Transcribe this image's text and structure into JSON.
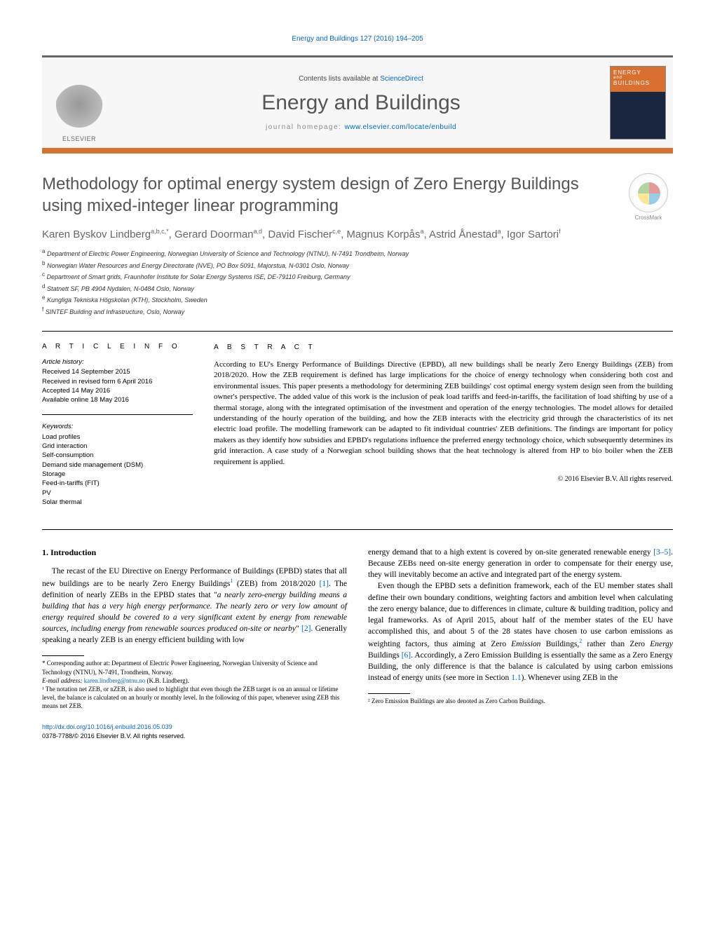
{
  "running_header": "Energy and Buildings 127 (2016) 194–205",
  "header": {
    "contents_prefix": "Contents lists available at ",
    "contents_link": "ScienceDirect",
    "journal_title": "Energy and Buildings",
    "homepage_prefix": "journal homepage: ",
    "homepage_url": "www.elsevier.com/locate/enbuild",
    "elsevier_label": "ELSEVIER",
    "cover_top": "ENERGY",
    "cover_sub": "BUILDINGS"
  },
  "article": {
    "title": "Methodology for optimal energy system design of Zero Energy Buildings using mixed-integer linear programming",
    "crossmark_label": "CrossMark",
    "authors_html": "Karen Byskov Lindberg|a,b,c,*|, Gerard Doorman|a,d|, David Fischer|c,e|, Magnus Korpås|a|, Astrid Ånestad|a|, Igor Sartori|f|",
    "affiliations": [
      "a Department of Electric Power Engineering, Norwegian University of Science and Technology (NTNU), N-7491 Trondheim, Norway",
      "b Norwegian Water Resources and Energy Directorate (NVE), PO Box 5091, Majorstua, N-0301 Oslo, Norway",
      "c Department of Smart grids, Fraunhofer Institute for Solar Energy Systems ISE, DE-79110 Freiburg, Germany",
      "d Statnett SF, PB 4904 Nydalen, N-0484 Oslo, Norway",
      "e Kungliga Tekniska Högskolan (KTH), Stockholm, Sweden",
      "f SINTEF Building and Infrastructure, Oslo, Norway"
    ]
  },
  "info": {
    "heading": "a r t i c l e   i n f o",
    "history_label": "Article history:",
    "history": [
      "Received 14 September 2015",
      "Received in revised form 6 April 2016",
      "Accepted 14 May 2016",
      "Available online 18 May 2016"
    ],
    "keywords_label": "Keywords:",
    "keywords": [
      "Load profiles",
      "Grid interaction",
      "Self-consumption",
      "Demand side management (DSM)",
      "Storage",
      "Feed-in-tariffs (FIT)",
      "PV",
      "Solar thermal"
    ]
  },
  "abstract": {
    "heading": "a b s t r a c t",
    "text": "According to EU's Energy Performance of Buildings Directive (EPBD), all new buildings shall be nearly Zero Energy Buildings (ZEB) from 2018/2020. How the ZEB requirement is defined has large implications for the choice of energy technology when considering both cost and environmental issues. This paper presents a methodology for determining ZEB buildings' cost optimal energy system design seen from the building owner's perspective. The added value of this work is the inclusion of peak load tariffs and feed-in-tariffs, the facilitation of load shifting by use of a thermal storage, along with the integrated optimisation of the investment and operation of the energy technologies. The model allows for detailed understanding of the hourly operation of the building, and how the ZEB interacts with the electricity grid through the characteristics of its net electric load profile. The modelling framework can be adapted to fit individual countries' ZEB definitions. The findings are important for policy makers as they identify how subsidies and EPBD's regulations influence the preferred energy technology choice, which subsequently determines its grid interaction. A case study of a Norwegian school building shows that the heat technology is altered from HP to bio boiler when the ZEB requirement is applied.",
    "copyright": "© 2016 Elsevier B.V. All rights reserved."
  },
  "body": {
    "section1_heading": "1. Introduction",
    "left_para1_a": "The recast of the EU Directive on Energy Performance of Buildings (EPBD) states that all new buildings are to be nearly Zero Energy Buildings",
    "left_para1_sup1": "1",
    "left_para1_b": " (ZEB) from 2018/2020 ",
    "left_para1_ref1": "[1]",
    "left_para1_c": ". The definition of nearly ZEBs in the EPBD states that \"",
    "left_para1_italic": "a nearly zero-energy building means a building that has a very high energy performance. The nearly zero or very low amount of energy required should be covered to a very significant extent by energy from renewable sources, including energy from renewable sources produced on-site or nearby",
    "left_para1_d": "\" ",
    "left_para1_ref2": "[2]",
    "left_para1_e": ". Generally speaking a nearly ZEB is an energy efficient building with low",
    "right_para1_a": "energy demand that to a high extent is covered by on-site generated renewable energy ",
    "right_para1_ref": "[3–5]",
    "right_para1_b": ". Because ZEBs need on-site energy generation in order to compensate for their energy use, they will inevitably become an active and integrated part of the energy system.",
    "right_para2_a": "Even though the EPBD sets a definition framework, each of the EU member states shall define their own boundary conditions, weighting factors and ambition level when calculating the zero energy balance, due to differences in climate, culture & building tradition, policy and legal frameworks. As of April 2015, about half of the member states of the EU have accomplished this, and about 5 of the 28 states have chosen to use carbon emissions as weighting factors, thus aiming at Zero ",
    "right_para2_em": "Emission",
    "right_para2_b": " Buildings,",
    "right_para2_sup": "2",
    "right_para2_c": " rather than Zero ",
    "right_para2_em2": "Energy",
    "right_para2_d": " Buildings ",
    "right_para2_ref": "[6]",
    "right_para2_e": ". Accordingly, a Zero Emission Building is essentially the same as a Zero Energy Building, the only difference is that the balance is calculated by using carbon emissions instead of energy units (see more in Section ",
    "right_para2_ref2": "1.1",
    "right_para2_f": "). Whenever using ZEB in the"
  },
  "footnotes_left": {
    "corr": "* Corresponding author at: Department of Electric Power Engineering, Norwegian University of Science and Technology (NTNU), N-7491, Trondheim, Norway.",
    "email_label": "E-mail address: ",
    "email": "karen.lindberg@ntnu.no",
    "email_who": " (K.B. Lindberg).",
    "fn1": "¹ The notation net ZEB, or nZEB, is also used to highlight that even though the ZEB target is on an annual or lifetime level, the balance is calculated on an hourly or monthly level. In the following of this paper, whenever using ZEB this means net ZEB."
  },
  "footnotes_right": {
    "fn2": "² Zero Emission Buildings are also denoted as Zero Carbon Buildings."
  },
  "footer": {
    "doi": "http://dx.doi.org/10.1016/j.enbuild.2016.05.039",
    "issn_line": "0378-7788/© 2016 Elsevier B.V. All rights reserved."
  },
  "colors": {
    "link": "#0066cc",
    "accent": "#d97030",
    "text": "#000000",
    "muted": "#555555"
  }
}
